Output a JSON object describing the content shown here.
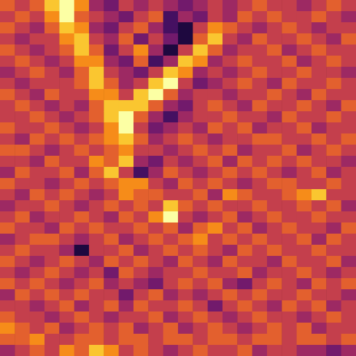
{
  "chart_data": {
    "type": "heatmap",
    "tick_labels": false,
    "zlim": [
      0,
      9
    ],
    "cells": [
      [
        6,
        5,
        6,
        8,
        9,
        7,
        4,
        3,
        5,
        4,
        5,
        4,
        3,
        4,
        5,
        4,
        5,
        6,
        5,
        5,
        4,
        5,
        6,
        5
      ],
      [
        5,
        6,
        5,
        7,
        9,
        6,
        5,
        4,
        3,
        5,
        6,
        2,
        4,
        3,
        5,
        4,
        6,
        5,
        6,
        5,
        5,
        6,
        5,
        4
      ],
      [
        6,
        5,
        4,
        6,
        8,
        7,
        4,
        3,
        5,
        6,
        4,
        2,
        1,
        5,
        7,
        6,
        5,
        4,
        5,
        6,
        5,
        4,
        5,
        5
      ],
      [
        5,
        4,
        5,
        5,
        7,
        8,
        5,
        4,
        6,
        3,
        5,
        3,
        1,
        6,
        8,
        5,
        4,
        6,
        5,
        5,
        6,
        5,
        4,
        6
      ],
      [
        6,
        5,
        4,
        5,
        6,
        8,
        6,
        3,
        5,
        7,
        4,
        1,
        5,
        8,
        6,
        4,
        5,
        5,
        6,
        4,
        5,
        6,
        5,
        5
      ],
      [
        5,
        6,
        5,
        4,
        5,
        7,
        7,
        4,
        3,
        6,
        2,
        4,
        8,
        7,
        4,
        5,
        6,
        5,
        5,
        6,
        4,
        5,
        6,
        5
      ],
      [
        4,
        5,
        6,
        5,
        4,
        6,
        8,
        5,
        4,
        3,
        5,
        8,
        7,
        4,
        5,
        4,
        5,
        6,
        5,
        5,
        6,
        5,
        5,
        4
      ],
      [
        5,
        4,
        5,
        5,
        5,
        6,
        8,
        6,
        4,
        5,
        8,
        9,
        5,
        3,
        4,
        5,
        6,
        5,
        4,
        6,
        5,
        5,
        6,
        5
      ],
      [
        6,
        5,
        4,
        6,
        5,
        5,
        7,
        7,
        5,
        8,
        9,
        6,
        4,
        5,
        5,
        4,
        5,
        5,
        6,
        5,
        4,
        6,
        5,
        5
      ],
      [
        5,
        6,
        5,
        4,
        5,
        4,
        6,
        8,
        8,
        8,
        6,
        4,
        3,
        5,
        6,
        5,
        4,
        6,
        5,
        5,
        6,
        5,
        4,
        6
      ],
      [
        5,
        5,
        6,
        5,
        4,
        5,
        6,
        8,
        9,
        6,
        4,
        2,
        4,
        5,
        5,
        6,
        5,
        5,
        4,
        6,
        5,
        5,
        6,
        5
      ],
      [
        6,
        5,
        5,
        6,
        5,
        4,
        5,
        7,
        9,
        5,
        3,
        4,
        5,
        4,
        6,
        5,
        6,
        4,
        5,
        5,
        6,
        4,
        5,
        5
      ],
      [
        5,
        4,
        6,
        5,
        6,
        5,
        6,
        7,
        8,
        6,
        4,
        5,
        6,
        5,
        4,
        5,
        5,
        6,
        6,
        5,
        5,
        6,
        5,
        6
      ],
      [
        6,
        6,
        5,
        4,
        5,
        6,
        5,
        6,
        7,
        5,
        5,
        4,
        5,
        6,
        5,
        6,
        4,
        5,
        5,
        6,
        4,
        5,
        6,
        5
      ],
      [
        5,
        5,
        4,
        6,
        5,
        5,
        7,
        6,
        8,
        4,
        3,
        5,
        4,
        5,
        6,
        4,
        6,
        5,
        6,
        5,
        6,
        5,
        5,
        4
      ],
      [
        4,
        6,
        5,
        5,
        6,
        4,
        6,
        8,
        5,
        2,
        4,
        6,
        5,
        4,
        5,
        6,
        5,
        6,
        5,
        4,
        5,
        6,
        4,
        5
      ],
      [
        6,
        5,
        5,
        4,
        5,
        6,
        5,
        6,
        7,
        7,
        5,
        4,
        6,
        5,
        6,
        5,
        4,
        5,
        6,
        6,
        5,
        5,
        6,
        5
      ],
      [
        5,
        4,
        6,
        5,
        6,
        5,
        4,
        5,
        7,
        6,
        6,
        5,
        5,
        6,
        4,
        7,
        6,
        5,
        5,
        6,
        7,
        8,
        5,
        5
      ],
      [
        4,
        5,
        5,
        6,
        5,
        4,
        5,
        6,
        5,
        6,
        5,
        8,
        6,
        5,
        6,
        5,
        5,
        6,
        5,
        5,
        6,
        5,
        6,
        4
      ],
      [
        5,
        6,
        4,
        5,
        5,
        6,
        5,
        4,
        6,
        5,
        7,
        9,
        5,
        4,
        5,
        6,
        4,
        5,
        6,
        5,
        5,
        6,
        5,
        5
      ],
      [
        6,
        5,
        5,
        4,
        6,
        5,
        6,
        5,
        5,
        6,
        5,
        6,
        4,
        6,
        7,
        5,
        6,
        4,
        5,
        6,
        5,
        5,
        4,
        6
      ],
      [
        4,
        5,
        6,
        6,
        5,
        4,
        5,
        6,
        4,
        5,
        6,
        5,
        6,
        7,
        5,
        6,
        5,
        6,
        5,
        5,
        6,
        4,
        6,
        5
      ],
      [
        5,
        6,
        5,
        5,
        4,
        1,
        5,
        5,
        6,
        4,
        5,
        6,
        5,
        6,
        5,
        4,
        6,
        5,
        6,
        5,
        5,
        6,
        5,
        5
      ],
      [
        6,
        5,
        4,
        5,
        6,
        5,
        4,
        6,
        5,
        6,
        5,
        4,
        6,
        5,
        4,
        6,
        5,
        5,
        4,
        6,
        5,
        5,
        6,
        4
      ],
      [
        5,
        4,
        5,
        6,
        5,
        4,
        5,
        3,
        6,
        5,
        4,
        5,
        5,
        6,
        5,
        5,
        6,
        4,
        5,
        5,
        6,
        5,
        4,
        5
      ],
      [
        6,
        5,
        6,
        5,
        4,
        5,
        6,
        4,
        5,
        4,
        3,
        5,
        6,
        5,
        6,
        4,
        3,
        5,
        6,
        5,
        4,
        6,
        5,
        6
      ],
      [
        4,
        6,
        5,
        6,
        5,
        6,
        5,
        5,
        3,
        5,
        6,
        4,
        5,
        4,
        5,
        6,
        5,
        6,
        5,
        5,
        6,
        5,
        5,
        4
      ],
      [
        5,
        5,
        4,
        5,
        6,
        4,
        5,
        6,
        4,
        6,
        5,
        5,
        6,
        5,
        3,
        5,
        6,
        5,
        4,
        6,
        5,
        6,
        4,
        5
      ],
      [
        6,
        5,
        5,
        4,
        5,
        6,
        5,
        4,
        5,
        5,
        6,
        4,
        5,
        6,
        5,
        4,
        5,
        6,
        5,
        5,
        4,
        5,
        6,
        5
      ],
      [
        7,
        6,
        5,
        6,
        4,
        5,
        6,
        5,
        6,
        4,
        5,
        6,
        4,
        5,
        6,
        5,
        4,
        5,
        6,
        5,
        6,
        4,
        5,
        5
      ],
      [
        6,
        6,
        7,
        5,
        5,
        6,
        6,
        5,
        6,
        6,
        5,
        6,
        6,
        5,
        6,
        6,
        5,
        6,
        6,
        5,
        6,
        6,
        5,
        6
      ],
      [
        4,
        5,
        6,
        5,
        7,
        6,
        8,
        7,
        5,
        6,
        5,
        4,
        5,
        6,
        5,
        5,
        6,
        4,
        5,
        5,
        4,
        4,
        3,
        4
      ]
    ]
  }
}
